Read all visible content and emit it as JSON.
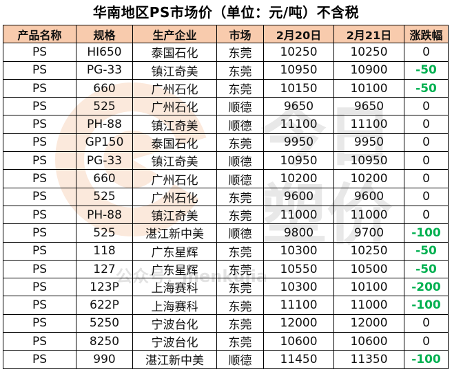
{
  "title": "华南地区PS市场价（单位：元/吨）不含税",
  "watermark": {
    "line1": "今日",
    "line2": "塑价",
    "public_account": "公众号：menkujia"
  },
  "table": {
    "headers": [
      "产品名称",
      "规格",
      "生产企业",
      "市场",
      "2月20日",
      "2月21日",
      "涨跌幅"
    ],
    "rows": [
      [
        "PS",
        "HI650",
        "泰国石化",
        "东莞",
        "10250",
        "10250",
        "0"
      ],
      [
        "PS",
        "PG-33",
        "镇江奇美",
        "东莞",
        "10950",
        "10900",
        "-50"
      ],
      [
        "PS",
        "660",
        "广州石化",
        "东莞",
        "10150",
        "10100",
        "-50"
      ],
      [
        "PS",
        "525",
        "广州石化",
        "顺德",
        "9650",
        "9650",
        "0"
      ],
      [
        "PS",
        "PH-88",
        "镇江奇美",
        "顺德",
        "11100",
        "11100",
        "0"
      ],
      [
        "PS",
        "GP150",
        "泰国石化",
        "东莞",
        "9950",
        "9950",
        "0"
      ],
      [
        "PS",
        "PG-33",
        "镇江奇美",
        "顺德",
        "10950",
        "10950",
        "0"
      ],
      [
        "PS",
        "660",
        "广州石化",
        "顺德",
        "10200",
        "10200",
        "0"
      ],
      [
        "PS",
        "525",
        "广州石化",
        "东莞",
        "9600",
        "9600",
        "0"
      ],
      [
        "PS",
        "PH-88",
        "镇江奇美",
        "东莞",
        "11000",
        "11000",
        "0"
      ],
      [
        "PS",
        "525",
        "湛江新中美",
        "顺德",
        "9800",
        "9700",
        "-100"
      ],
      [
        "PS",
        "118",
        "广东星辉",
        "东莞",
        "10300",
        "10250",
        "-50"
      ],
      [
        "PS",
        "127",
        "广东星辉",
        "东莞",
        "10550",
        "10500",
        "-50"
      ],
      [
        "PS",
        "123P",
        "上海赛科",
        "东莞",
        "10300",
        "10100",
        "-200"
      ],
      [
        "PS",
        "622P",
        "上海赛科",
        "东莞",
        "11100",
        "11000",
        "-100"
      ],
      [
        "PS",
        "5250",
        "宁波台化",
        "东莞",
        "12000",
        "12000",
        "0"
      ],
      [
        "PS",
        "8250",
        "宁波台化",
        "东莞",
        "10600",
        "10600",
        "0"
      ],
      [
        "PS",
        "990",
        "湛江新中美",
        "顺德",
        "11450",
        "11350",
        "-100"
      ]
    ]
  },
  "colors": {
    "header_bg": "#f8cbad",
    "negative": "#00b050",
    "watermark_orange": "#f4b183",
    "watermark_gray": "#d9d9d9"
  }
}
